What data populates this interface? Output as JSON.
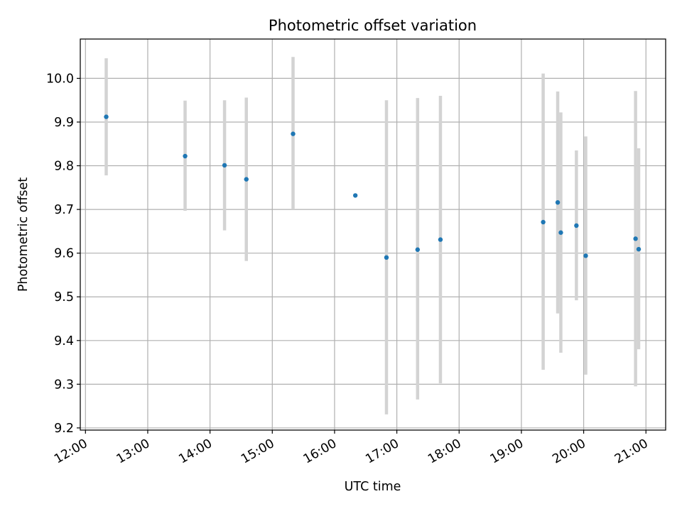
{
  "chart_data": {
    "type": "scatter",
    "title": "Photometric offset variation",
    "xlabel": "UTC time",
    "ylabel": "Photometric offset",
    "x_tick_labels": [
      "12:00",
      "13:00",
      "14:00",
      "15:00",
      "16:00",
      "17:00",
      "18:00",
      "19:00",
      "20:00",
      "21:00"
    ],
    "y_tick_labels": [
      "9.2",
      "9.3",
      "9.4",
      "9.5",
      "9.6",
      "9.7",
      "9.8",
      "9.9",
      "10.0"
    ],
    "xlim": [
      "11:55",
      "21:19"
    ],
    "ylim": [
      9.195,
      10.09
    ],
    "grid": true,
    "legend": false,
    "marker_color": "#1f77b4",
    "errorbar_color": "#d3d3d3",
    "points": [
      {
        "x": "12:20",
        "y": 9.912,
        "ylow": 9.778,
        "yhigh": 10.046
      },
      {
        "x": "13:36",
        "y": 9.822,
        "ylow": 9.697,
        "yhigh": 9.949
      },
      {
        "x": "14:14",
        "y": 9.801,
        "ylow": 9.652,
        "yhigh": 9.95
      },
      {
        "x": "14:35",
        "y": 9.769,
        "ylow": 9.582,
        "yhigh": 9.956
      },
      {
        "x": "15:20",
        "y": 9.873,
        "ylow": 9.7,
        "yhigh": 10.049
      },
      {
        "x": "16:20",
        "y": 9.732,
        "ylow": 9.732,
        "yhigh": 9.732
      },
      {
        "x": "16:50",
        "y": 9.59,
        "ylow": 9.231,
        "yhigh": 9.95
      },
      {
        "x": "17:20",
        "y": 9.608,
        "ylow": 9.265,
        "yhigh": 9.955
      },
      {
        "x": "17:42",
        "y": 9.631,
        "ylow": 9.302,
        "yhigh": 9.96
      },
      {
        "x": "19:21",
        "y": 9.671,
        "ylow": 9.333,
        "yhigh": 10.011
      },
      {
        "x": "19:35",
        "y": 9.716,
        "ylow": 9.462,
        "yhigh": 9.97
      },
      {
        "x": "19:38",
        "y": 9.647,
        "ylow": 9.372,
        "yhigh": 9.922
      },
      {
        "x": "19:53",
        "y": 9.663,
        "ylow": 9.492,
        "yhigh": 9.835
      },
      {
        "x": "20:02",
        "y": 9.594,
        "ylow": 9.322,
        "yhigh": 9.867
      },
      {
        "x": "20:50",
        "y": 9.633,
        "ylow": 9.295,
        "yhigh": 9.971
      },
      {
        "x": "20:53",
        "y": 9.609,
        "ylow": 9.38,
        "yhigh": 9.84
      }
    ]
  }
}
